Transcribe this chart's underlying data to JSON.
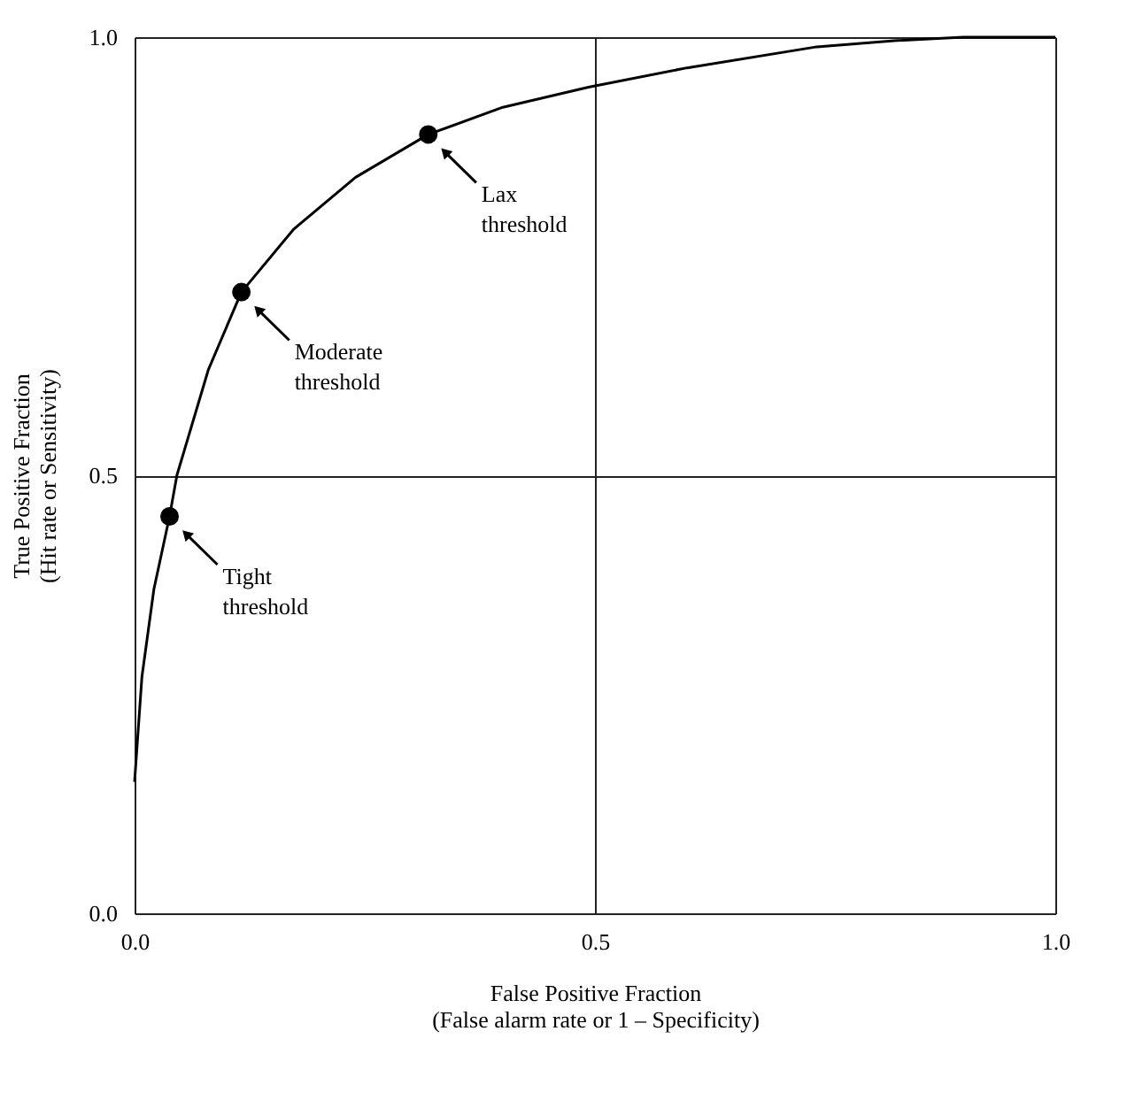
{
  "chart_data": {
    "type": "line",
    "xlabel": "False Positive Fraction\n(False alarm rate or 1 – Specificity)",
    "ylabel": "True Positive Fraction\n(Hit rate or Sensitivity)",
    "xlim": [
      0,
      1
    ],
    "ylim": [
      0,
      1
    ],
    "xticks": [
      {
        "value": 0,
        "label": "0.0"
      },
      {
        "value": 0.5,
        "label": "0.5"
      },
      {
        "value": 1,
        "label": "1.0"
      }
    ],
    "yticks": [
      {
        "value": 0,
        "label": "0.0"
      },
      {
        "value": 0.5,
        "label": "0.5"
      },
      {
        "value": 1,
        "label": "1.0"
      }
    ],
    "grid": true,
    "series": [
      {
        "color": "#000000",
        "line_style": "solid",
        "x": [
          0,
          0.008,
          0.021,
          0.038,
          0.046,
          0.08,
          0.116,
          0.173,
          0.24,
          0.319,
          0.4,
          0.493,
          0.6,
          0.741,
          0.825,
          0.9,
          1
        ],
        "values": [
          0.15,
          0.27,
          0.37,
          0.453,
          0.5,
          0.62,
          0.709,
          0.781,
          0.84,
          0.889,
          0.92,
          0.943,
          0.965,
          0.989,
          0.996,
          1,
          1
        ]
      },
      {
        "type": "scatter",
        "color": "#000000",
        "marker": "circle",
        "x": [
          0.038,
          0.116,
          0.319
        ],
        "values": [
          0.453,
          0.709,
          0.889
        ]
      }
    ],
    "annotations": [
      {
        "text": "Tight\nthreshold",
        "x": 0.038,
        "y": 0.453
      },
      {
        "text": "Moderate\nthreshold",
        "x": 0.116,
        "y": 0.709
      },
      {
        "text": "Lax\nthreshold",
        "x": 0.319,
        "y": 0.889
      }
    ]
  }
}
